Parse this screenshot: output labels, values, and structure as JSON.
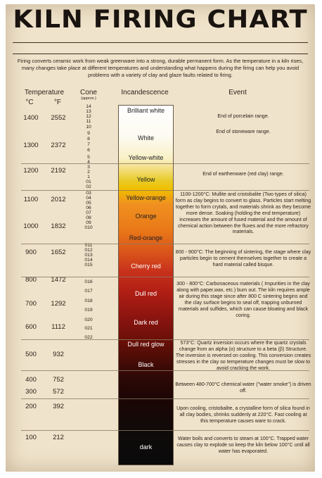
{
  "title": "KILN FIRING CHART",
  "intro": "Firing converts ceramic work from weak greenware into a strong, durable permanent form. As the temperature in a kiln rises, many changes take place at different temperatures and understanding what happens during the firing can help you avoid problems with a variety of clay and glaze faults related to firing.",
  "headers": {
    "temperature": "Temperature",
    "c": "°C",
    "f": "°F",
    "cone": "Cone",
    "approx": "(approx.)",
    "incandescence": "Incandescence",
    "event": "Event"
  },
  "temps": [
    {
      "c": "1400",
      "f": "2552"
    },
    {
      "c": "1300",
      "f": "2372"
    },
    {
      "c": "1200",
      "f": "2192"
    },
    {
      "c": "1100",
      "f": "2012"
    },
    {
      "c": "1000",
      "f": "1832"
    },
    {
      "c": "900",
      "f": "1652"
    },
    {
      "c": "800",
      "f": "1472"
    },
    {
      "c": "700",
      "f": "1292"
    },
    {
      "c": "600",
      "f": "1112"
    },
    {
      "c": "500",
      "f": "932"
    },
    {
      "c": "400",
      "f": "752"
    },
    {
      "c": "300",
      "f": "572"
    },
    {
      "c": "200",
      "f": "392"
    },
    {
      "c": "100",
      "f": "212"
    }
  ],
  "cones": [
    "14",
    "13",
    "12",
    "11",
    "10",
    "9",
    "8",
    "7",
    "6",
    "5",
    "4",
    "3",
    "2",
    "1",
    "01",
    "02",
    "03",
    "04",
    "05",
    "06",
    "07",
    "08",
    "09",
    "010",
    "011",
    "012",
    "013",
    "014",
    "015",
    "016",
    "017",
    "018",
    "019",
    "020",
    "021",
    "022"
  ],
  "incandescence": [
    "Brilliant white",
    "White",
    "Yellow-white",
    "Yellow",
    "Yellow-orange",
    "Orange",
    "Red-orange",
    "Cherry red",
    "Dull red",
    "Dark red",
    "Dull red glow",
    "Black",
    "dark"
  ],
  "events": [
    "End of porcelain range.",
    "End of stoneware range.",
    "End of earthenware (red clay) range.",
    "1100-1200°C: Mullite and cristobalite (Two types of silica) form as clay begins to convert to glass. Particles start melting together to form crytals, and materials shrink as they become more dense. Soaking (holding the end temperature) increases the amount of fused material and the amount of chemical action between the fluxes and the more refractory materials.",
    "800 - 900°C: The beginning of sintering, the stage where clay particles begin to cement themselves together to create a hard material called bisque.",
    "300 - 800°C: Carbonaceous materials ( Impurities in the clay along with paper,wax, etc.) burn out. The kiln requires ample air during this stage since after 800 C sintering begins and the clay surface begins to seal off, trapping unburned materials and sulfides, which can cause bloating and black coring.",
    "573°C: Quartz inversion occurs where the quartz crystals change from an alpha (α) structure to a beta (β) Structure. The inversion is reversed on cooling. This conversion creates stresses in the clay so temperature changes must be slow to avoid cracking the work.",
    "Between 480-700°C chemical water (\"water smoke\") is driven off.",
    "Upon cooling, cristobalite, a crystalline form of silica found in all clay bodies, shrinks suddenly at 220°C. Fast cooling at this temperature causes ware to crack.",
    "Water boils and converts to steam at 100°C. Trapped water causes clay to explode so keep the kiln below 100°C until all water has evaporated."
  ],
  "colors": {
    "paper": "#efe3cb",
    "ink": "#2c2218"
  }
}
